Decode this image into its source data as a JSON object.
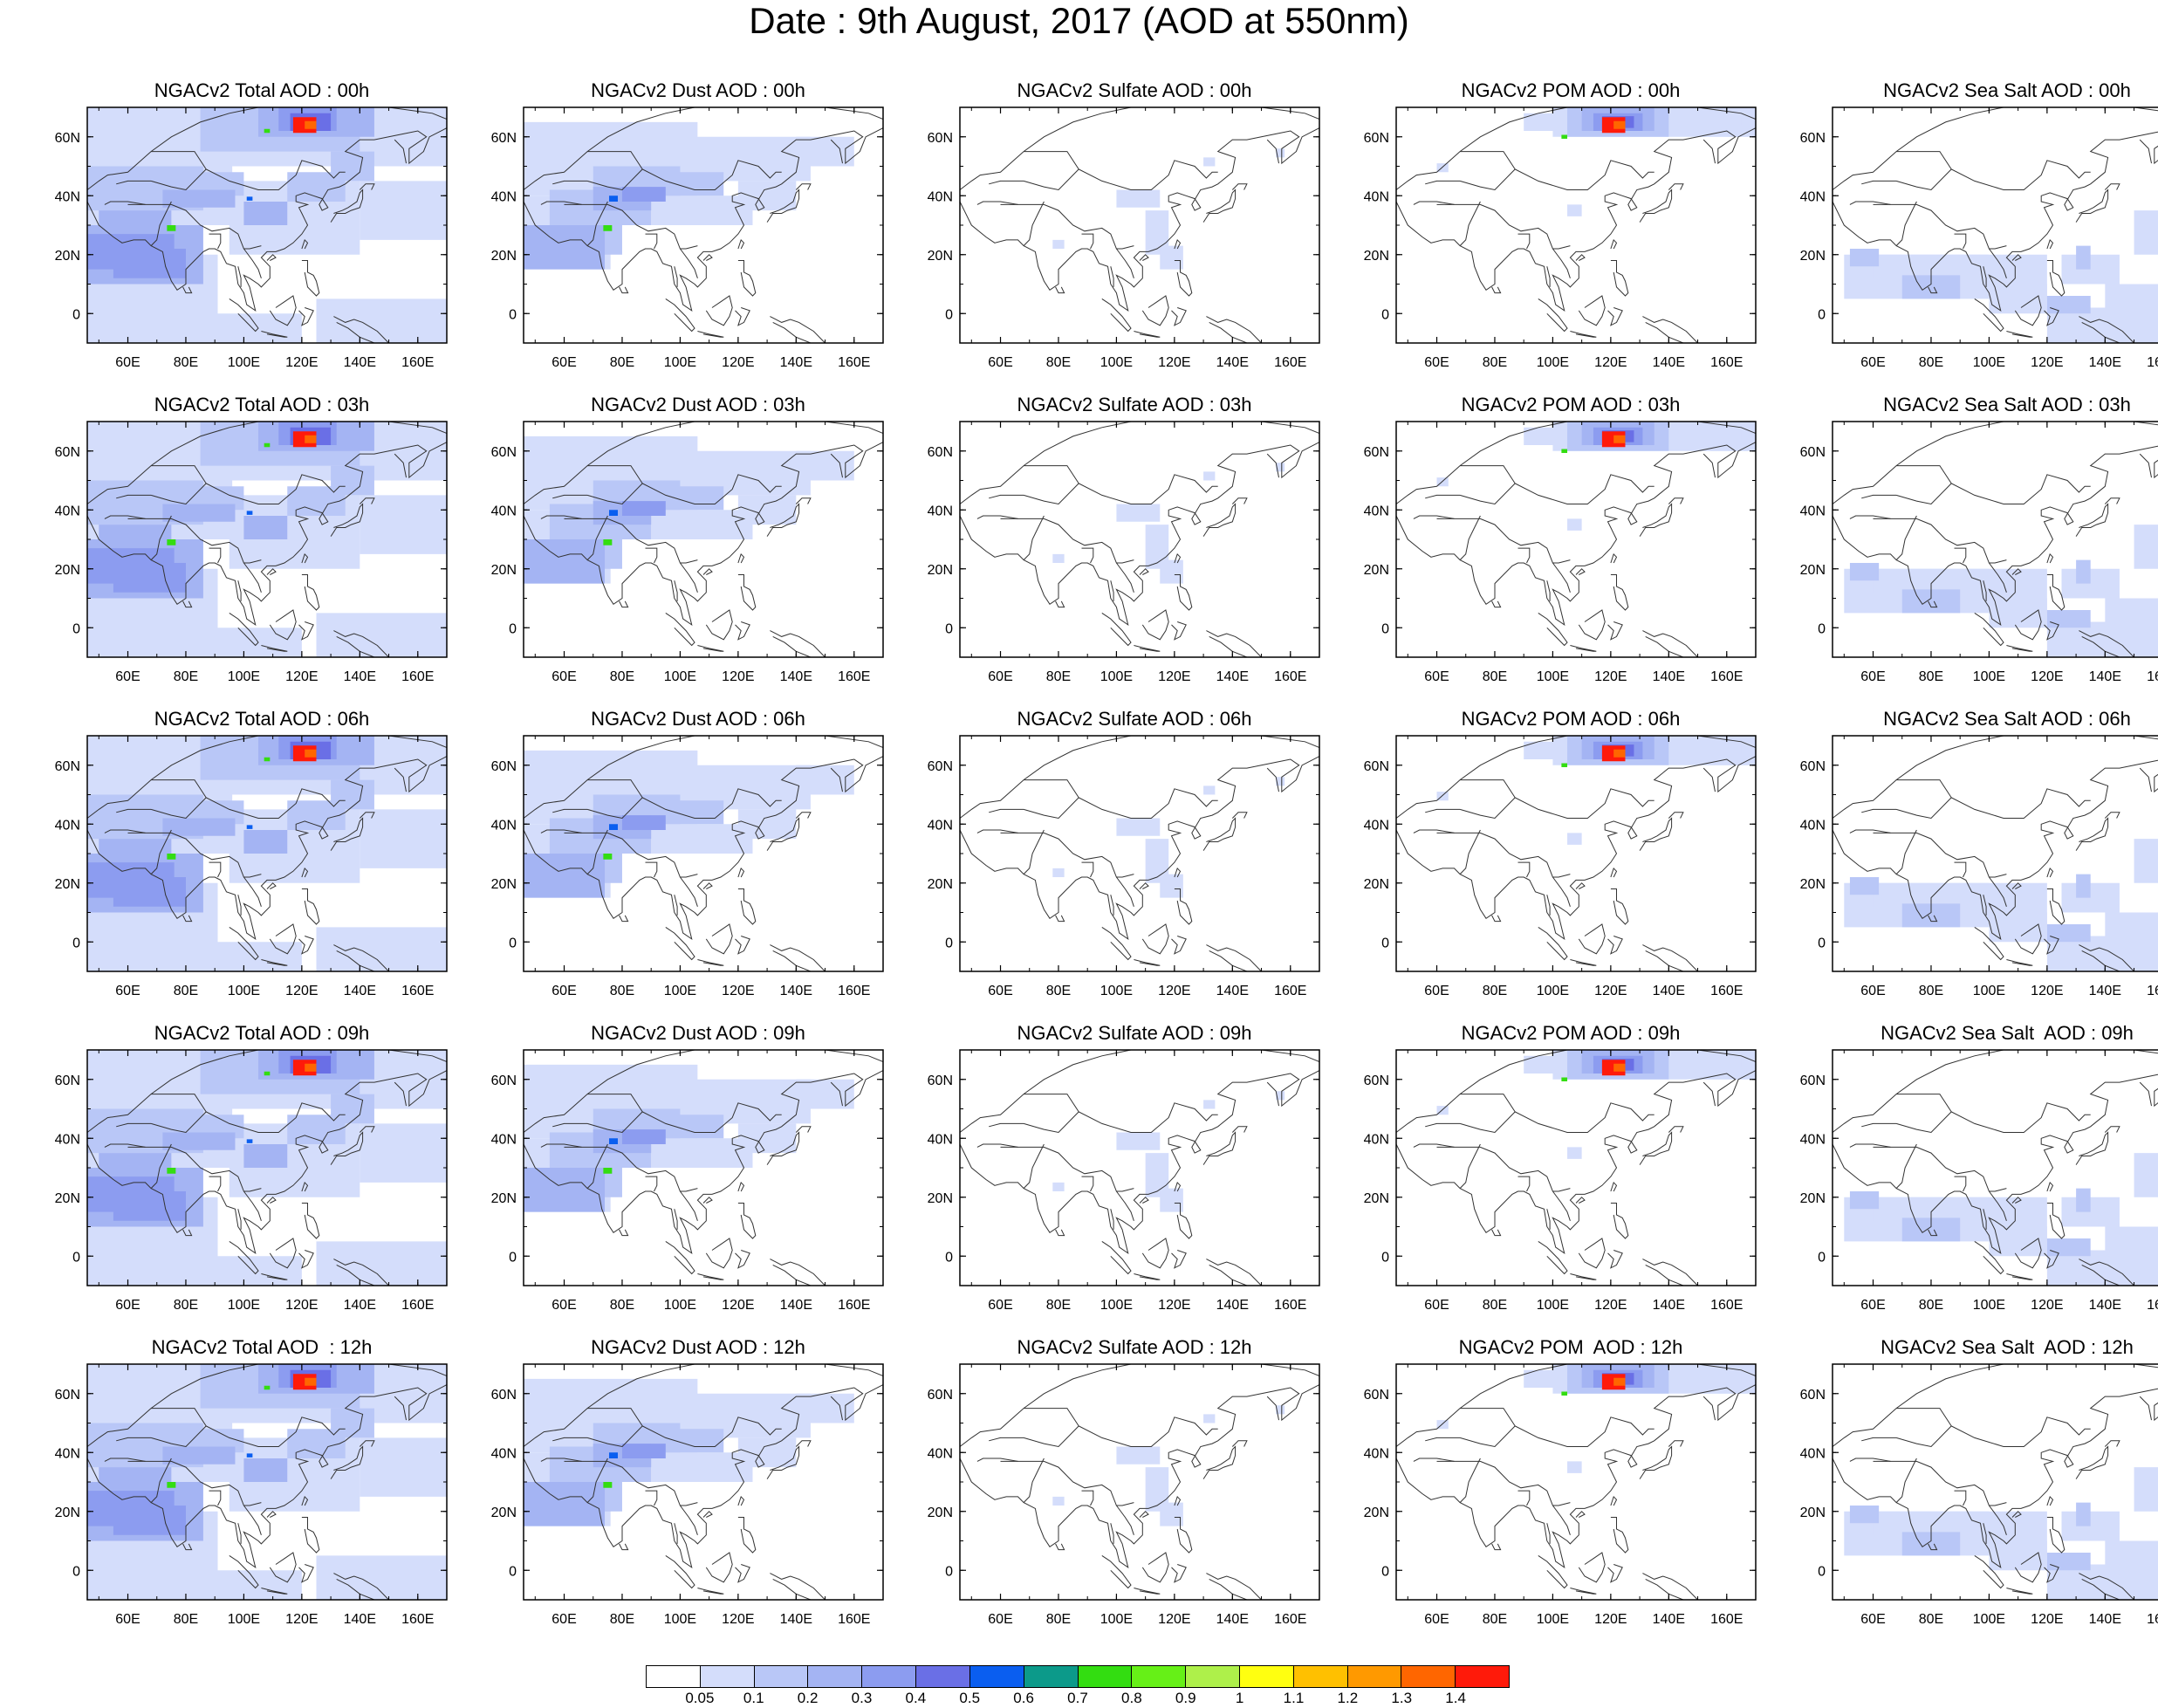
{
  "title": "Date : 9th August, 2017 (AOD at 550nm)",
  "map_axes": {
    "x_ticks": [
      "60E",
      "80E",
      "100E",
      "120E",
      "140E",
      "160E"
    ],
    "y_ticks": [
      "60N",
      "40N",
      "20N",
      "0"
    ]
  },
  "panels": [
    [
      "NGACv2 Total AOD : 00h",
      "NGACv2 Dust AOD : 00h",
      "NGACv2 Sulfate AOD : 00h",
      "NGACv2 POM AOD : 00h",
      "NGACv2 Sea Salt AOD : 00h"
    ],
    [
      "NGACv2 Total AOD : 03h",
      "NGACv2 Dust AOD : 03h",
      "NGACv2 Sulfate AOD : 03h",
      "NGACv2 POM AOD : 03h",
      "NGACv2 Sea Salt AOD : 03h"
    ],
    [
      "NGACv2 Total AOD : 06h",
      "NGACv2 Dust AOD : 06h",
      "NGACv2 Sulfate AOD : 06h",
      "NGACv2 POM AOD : 06h",
      "NGACv2 Sea Salt AOD : 06h"
    ],
    [
      "NGACv2 Total AOD : 09h",
      "NGACv2 Dust AOD : 09h",
      "NGACv2 Sulfate AOD : 09h",
      "NGACv2 POM AOD : 09h",
      "NGACv2 Sea Salt  AOD : 09h"
    ],
    [
      "NGACv2 Total AOD  : 12h",
      "NGACv2 Dust AOD : 12h",
      "NGACv2 Sulfate AOD : 12h",
      "NGACv2 POM  AOD : 12h",
      "NGACv2 Sea Salt  AOD : 12h"
    ]
  ],
  "colorbar": {
    "labels": [
      "0.05",
      "0.1",
      "0.2",
      "0.3",
      "0.4",
      "0.5",
      "0.6",
      "0.7",
      "0.8",
      "0.9",
      "1",
      "1.1",
      "1.2",
      "1.3",
      "1.4"
    ],
    "colors": [
      "#ffffff",
      "#d4ddfb",
      "#b9c7f7",
      "#a4b4f3",
      "#8c9cf0",
      "#6a6fe6",
      "#0a5ef0",
      "#0c9a8a",
      "#33dd11",
      "#66f017",
      "#aef04a",
      "#ffff10",
      "#ffc000",
      "#ff9900",
      "#ff6600",
      "#ff1a0a"
    ]
  }
}
